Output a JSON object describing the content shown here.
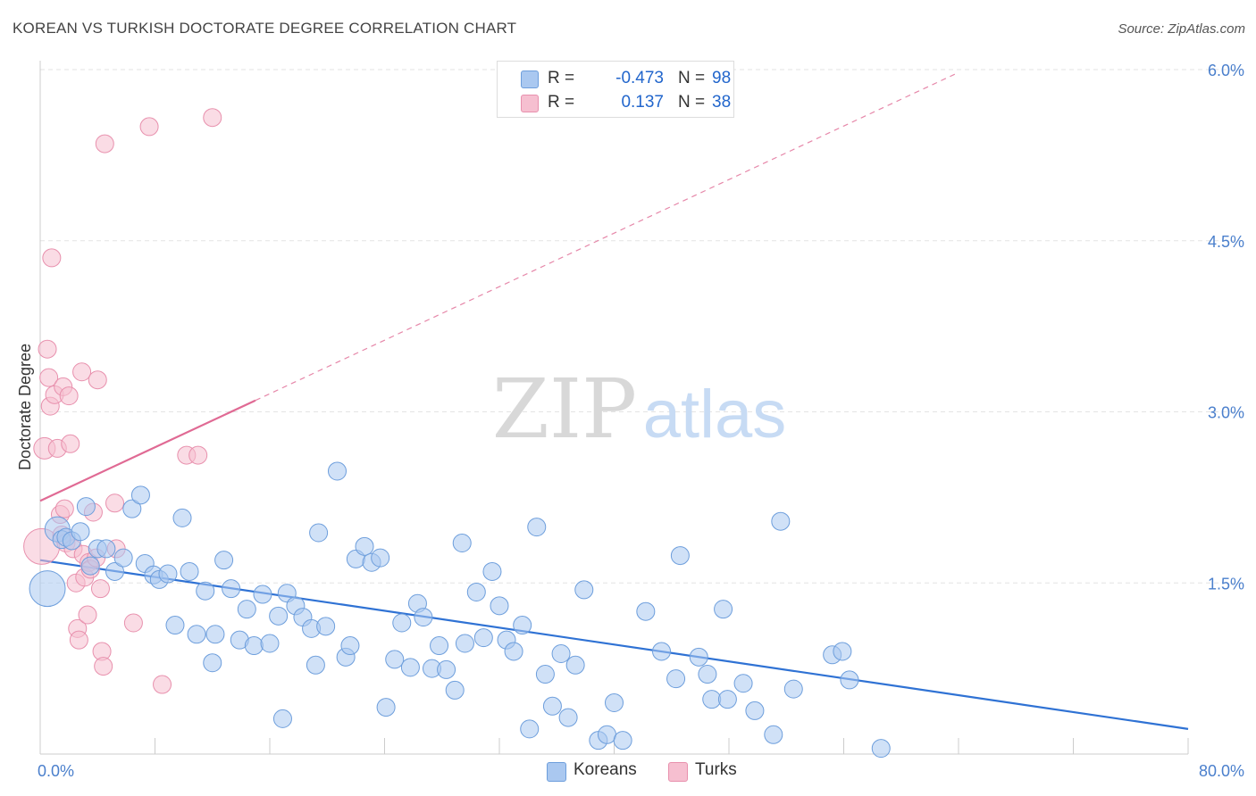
{
  "title": "KOREAN VS TURKISH DOCTORATE DEGREE CORRELATION CHART",
  "source": "Source: ZipAtlas.com",
  "watermark": {
    "zip": "ZIP",
    "atlas": "atlas"
  },
  "legend": {
    "rows": [
      {
        "r_label": "R =",
        "r_value": "-0.473",
        "n_label": "N =",
        "n_value": "98"
      },
      {
        "r_label": "R =",
        "r_value": "0.137",
        "n_label": "N =",
        "n_value": "38"
      }
    ]
  },
  "bottom_legend": {
    "koreans": "Koreans",
    "turks": "Turks"
  },
  "colors": {
    "korean_fill": "#aac8f0",
    "korean_stroke": "#6d9edc",
    "korean_line": "#2f72d4",
    "turk_fill": "#f6bfd0",
    "turk_stroke": "#e890ad",
    "turk_line": "#e06a94",
    "axis_text": "#4a7fcc",
    "grid": "#e3e3e3"
  },
  "chart_data": {
    "type": "scatter",
    "title": "KOREAN VS TURKISH DOCTORATE DEGREE CORRELATION CHART",
    "xlabel": "",
    "ylabel": "Doctorate Degree",
    "xlim": [
      0,
      80
    ],
    "ylim": [
      0,
      6.0
    ],
    "x_tick_labels": [
      "0.0%",
      "80.0%"
    ],
    "y_ticks": [
      1.5,
      3.0,
      4.5,
      6.0
    ],
    "y_tick_labels": [
      "1.5%",
      "3.0%",
      "4.5%",
      "6.0%"
    ],
    "series": [
      {
        "name": "Koreans",
        "r": -0.473,
        "n": 98,
        "trend": {
          "x0": 0,
          "y0": 1.7,
          "x1": 80,
          "y1": 0.22,
          "dashed_to": 80
        },
        "points": [
          [
            0.5,
            1.45,
            20
          ],
          [
            1.2,
            1.97,
            14
          ],
          [
            1.5,
            1.88,
            10
          ],
          [
            1.8,
            1.9,
            10
          ],
          [
            2.2,
            1.87,
            10
          ],
          [
            2.8,
            1.95,
            10
          ],
          [
            3.2,
            2.17,
            10
          ],
          [
            3.5,
            1.65,
            10
          ],
          [
            4.0,
            1.8,
            10
          ],
          [
            4.6,
            1.8,
            10
          ],
          [
            5.2,
            1.6,
            10
          ],
          [
            5.8,
            1.72,
            10
          ],
          [
            6.4,
            2.15,
            10
          ],
          [
            7.0,
            2.27,
            10
          ],
          [
            7.3,
            1.67,
            10
          ],
          [
            7.9,
            1.57,
            10
          ],
          [
            8.3,
            1.53,
            10
          ],
          [
            8.9,
            1.58,
            10
          ],
          [
            9.4,
            1.13,
            10
          ],
          [
            9.9,
            2.07,
            10
          ],
          [
            10.4,
            1.6,
            10
          ],
          [
            10.9,
            1.05,
            10
          ],
          [
            11.5,
            1.43,
            10
          ],
          [
            12.0,
            0.8,
            10
          ],
          [
            12.2,
            1.05,
            10
          ],
          [
            12.8,
            1.7,
            10
          ],
          [
            13.3,
            1.45,
            10
          ],
          [
            13.9,
            1.0,
            10
          ],
          [
            14.4,
            1.27,
            10
          ],
          [
            14.9,
            0.95,
            10
          ],
          [
            15.5,
            1.4,
            10
          ],
          [
            16.0,
            0.97,
            10
          ],
          [
            16.6,
            1.21,
            10
          ],
          [
            16.9,
            0.31,
            10
          ],
          [
            17.2,
            1.41,
            10
          ],
          [
            17.8,
            1.3,
            10
          ],
          [
            18.3,
            1.2,
            10
          ],
          [
            18.9,
            1.1,
            10
          ],
          [
            19.2,
            0.78,
            10
          ],
          [
            19.4,
            1.94,
            10
          ],
          [
            19.9,
            1.12,
            10
          ],
          [
            20.7,
            2.48,
            10
          ],
          [
            21.3,
            0.85,
            10
          ],
          [
            21.6,
            0.95,
            10
          ],
          [
            22.0,
            1.71,
            10
          ],
          [
            22.6,
            1.82,
            10
          ],
          [
            23.1,
            1.68,
            10
          ],
          [
            23.7,
            1.72,
            10
          ],
          [
            24.1,
            0.41,
            10
          ],
          [
            24.7,
            0.83,
            10
          ],
          [
            25.2,
            1.15,
            10
          ],
          [
            25.8,
            0.76,
            10
          ],
          [
            26.3,
            1.32,
            10
          ],
          [
            26.7,
            1.2,
            10
          ],
          [
            27.3,
            0.75,
            10
          ],
          [
            27.8,
            0.95,
            10
          ],
          [
            28.3,
            0.74,
            10
          ],
          [
            28.9,
            0.56,
            10
          ],
          [
            29.4,
            1.85,
            10
          ],
          [
            29.6,
            0.97,
            10
          ],
          [
            30.4,
            1.42,
            10
          ],
          [
            30.9,
            1.02,
            10
          ],
          [
            31.5,
            1.6,
            10
          ],
          [
            32.0,
            1.3,
            10
          ],
          [
            32.5,
            1.0,
            10
          ],
          [
            33.0,
            0.9,
            10
          ],
          [
            33.6,
            1.13,
            10
          ],
          [
            34.1,
            0.22,
            10
          ],
          [
            34.6,
            1.99,
            10
          ],
          [
            35.2,
            0.7,
            10
          ],
          [
            35.7,
            0.42,
            10
          ],
          [
            36.3,
            0.88,
            10
          ],
          [
            36.8,
            0.32,
            10
          ],
          [
            37.3,
            0.78,
            10
          ],
          [
            37.9,
            1.44,
            10
          ],
          [
            38.9,
            0.12,
            10
          ],
          [
            39.5,
            0.17,
            10
          ],
          [
            40.0,
            0.45,
            10
          ],
          [
            40.6,
            0.12,
            10
          ],
          [
            42.2,
            1.25,
            10
          ],
          [
            43.3,
            0.9,
            10
          ],
          [
            44.3,
            0.66,
            10
          ],
          [
            44.6,
            1.74,
            10
          ],
          [
            45.9,
            0.85,
            10
          ],
          [
            46.5,
            0.7,
            10
          ],
          [
            46.8,
            0.48,
            10
          ],
          [
            47.6,
            1.27,
            10
          ],
          [
            47.9,
            0.48,
            10
          ],
          [
            49.0,
            0.62,
            10
          ],
          [
            49.8,
            0.38,
            10
          ],
          [
            51.1,
            0.17,
            10
          ],
          [
            51.6,
            2.04,
            10
          ],
          [
            52.5,
            0.57,
            10
          ],
          [
            55.2,
            0.87,
            10
          ],
          [
            55.9,
            0.9,
            10
          ],
          [
            56.4,
            0.65,
            10
          ],
          [
            58.6,
            0.05,
            10
          ]
        ]
      },
      {
        "name": "Turks",
        "r": 0.137,
        "n": 38,
        "trend": {
          "x0": 0,
          "y0": 2.22,
          "x1": 15,
          "y1": 3.1,
          "dashed_to": 64
        },
        "points": [
          [
            0.1,
            1.82,
            20
          ],
          [
            0.3,
            2.68,
            12
          ],
          [
            0.5,
            3.55,
            10
          ],
          [
            0.6,
            3.3,
            10
          ],
          [
            0.7,
            3.05,
            10
          ],
          [
            0.8,
            4.35,
            10
          ],
          [
            1.0,
            3.15,
            10
          ],
          [
            1.2,
            2.68,
            10
          ],
          [
            1.4,
            2.1,
            10
          ],
          [
            1.5,
            1.92,
            10
          ],
          [
            1.6,
            3.22,
            10
          ],
          [
            1.7,
            2.15,
            10
          ],
          [
            1.8,
            1.85,
            10
          ],
          [
            2.0,
            3.14,
            10
          ],
          [
            2.1,
            2.72,
            10
          ],
          [
            2.3,
            1.8,
            10
          ],
          [
            2.5,
            1.5,
            10
          ],
          [
            2.6,
            1.1,
            10
          ],
          [
            2.7,
            1.0,
            10
          ],
          [
            2.9,
            3.35,
            10
          ],
          [
            3.0,
            1.75,
            10
          ],
          [
            3.1,
            1.55,
            10
          ],
          [
            3.3,
            1.22,
            10
          ],
          [
            3.4,
            1.68,
            10
          ],
          [
            3.5,
            1.62,
            10
          ],
          [
            3.7,
            2.12,
            10
          ],
          [
            3.9,
            1.72,
            10
          ],
          [
            4.0,
            3.28,
            10
          ],
          [
            4.2,
            1.45,
            10
          ],
          [
            4.3,
            0.9,
            10
          ],
          [
            4.4,
            0.77,
            10
          ],
          [
            4.5,
            5.35,
            10
          ],
          [
            5.2,
            2.2,
            10
          ],
          [
            5.3,
            1.8,
            10
          ],
          [
            6.5,
            1.15,
            10
          ],
          [
            7.6,
            5.5,
            10
          ],
          [
            8.5,
            0.61,
            10
          ],
          [
            10.2,
            2.62,
            10
          ],
          [
            11.0,
            2.62,
            10
          ],
          [
            12.0,
            5.58,
            10
          ]
        ]
      }
    ]
  }
}
